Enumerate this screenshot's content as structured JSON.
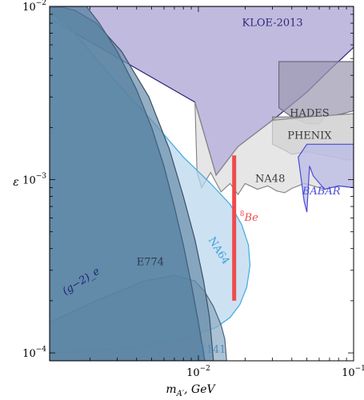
{
  "chart_data": {
    "type": "area",
    "title": "",
    "xlabel": "m_{A'}, GeV",
    "ylabel": "ε",
    "xscale": "log",
    "yscale": "log",
    "xlim": [
      0.0011,
      0.1
    ],
    "ylim": [
      9e-05,
      0.01
    ],
    "x_ticks": [
      {
        "value": 0.01,
        "base": "10",
        "exp": "−2"
      },
      {
        "value": 0.1,
        "base": "10",
        "exp": "−1"
      }
    ],
    "y_ticks": [
      {
        "value": 0.0001,
        "base": "10",
        "exp": "−4"
      },
      {
        "value": 0.001,
        "base": "10",
        "exp": "−3"
      },
      {
        "value": 0.01,
        "base": "10",
        "exp": "−2"
      }
    ],
    "regions": [
      {
        "name": "KLOE-2013",
        "fill": "#a99fd2",
        "stroke": "#2c2a78",
        "label_pos": [
          0.03,
          0.0077
        ],
        "label_color": "#2c2a78",
        "points": [
          [
            0.0011,
            0.01
          ],
          [
            0.0011,
            0.0085
          ],
          [
            0.0095,
            0.0028
          ],
          [
            0.013,
            0.00106
          ],
          [
            0.018,
            0.00155
          ],
          [
            0.03,
            0.0022
          ],
          [
            0.05,
            0.0032
          ],
          [
            0.07,
            0.0043
          ],
          [
            0.1,
            0.0058
          ],
          [
            0.1,
            0.01
          ]
        ]
      },
      {
        "name": "HADES",
        "fill": "#9c98b0",
        "stroke": "#6e6b80",
        "label_pos": [
          0.052,
          0.00232
        ],
        "label_color": "#3a3a3a",
        "points": [
          [
            0.033,
            0.0048
          ],
          [
            0.033,
            0.0026
          ],
          [
            0.04,
            0.0023
          ],
          [
            0.05,
            0.0021
          ],
          [
            0.06,
            0.0021
          ],
          [
            0.065,
            0.0023
          ],
          [
            0.085,
            0.0024
          ],
          [
            0.1,
            0.0025
          ],
          [
            0.1,
            0.0048
          ]
        ]
      },
      {
        "name": "PHENIX",
        "fill": "#b3b3b8",
        "stroke": "#777777",
        "label_pos": [
          0.052,
          0.00172
        ],
        "label_color": "#3a3a3a",
        "points": [
          [
            0.03,
            0.0023
          ],
          [
            0.03,
            0.0016
          ],
          [
            0.035,
            0.0015
          ],
          [
            0.04,
            0.0014
          ],
          [
            0.05,
            0.00145
          ],
          [
            0.06,
            0.0014
          ],
          [
            0.075,
            0.00135
          ],
          [
            0.09,
            0.0013
          ],
          [
            0.1,
            0.0013
          ],
          [
            0.1,
            0.0024
          ],
          [
            0.05,
            0.0023
          ]
        ]
      },
      {
        "name": "NA48",
        "fill": "#dcdcdc",
        "stroke": "#888888",
        "label_pos": [
          0.029,
          0.00097
        ],
        "label_color": "#3a3a3a",
        "points": [
          [
            0.0095,
            0.0028
          ],
          [
            0.0098,
            0.0011
          ],
          [
            0.0105,
            0.0009
          ],
          [
            0.012,
            0.0011
          ],
          [
            0.014,
            0.00085
          ],
          [
            0.016,
            0.00095
          ],
          [
            0.018,
            0.00082
          ],
          [
            0.02,
            0.00095
          ],
          [
            0.024,
            0.00088
          ],
          [
            0.028,
            0.00092
          ],
          [
            0.032,
            0.00086
          ],
          [
            0.036,
            0.00084
          ],
          [
            0.04,
            0.00089
          ],
          [
            0.048,
            0.00095
          ],
          [
            0.055,
            0.00092
          ],
          [
            0.065,
            0.00088
          ],
          [
            0.08,
            0.00092
          ],
          [
            0.1,
            0.0009
          ],
          [
            0.1,
            0.0024
          ],
          [
            0.05,
            0.0023
          ],
          [
            0.03,
            0.0022
          ],
          [
            0.018,
            0.00155
          ],
          [
            0.013,
            0.00106
          ]
        ]
      },
      {
        "name": "BABAR",
        "fill": "#b8b8e6",
        "stroke": "#4a4ad8",
        "label_pos": [
          0.062,
          0.00082
        ],
        "label_color": "#4a4ad8",
        "points": [
          [
            0.044,
            0.00135
          ],
          [
            0.048,
            0.00075
          ],
          [
            0.05,
            0.00065
          ],
          [
            0.052,
            0.0012
          ],
          [
            0.055,
            0.00105
          ],
          [
            0.065,
            0.00088
          ],
          [
            0.08,
            0.00092
          ],
          [
            0.1,
            0.0009
          ],
          [
            0.1,
            0.0016
          ],
          [
            0.05,
            0.0016
          ]
        ]
      },
      {
        "name": "NA64",
        "fill": "#b9d7ee",
        "stroke": "#41a9df",
        "label_pos": [
          0.013,
          0.00038
        ],
        "label_color": "#3e9fd6",
        "points": [
          [
            0.0011,
            0.0094
          ],
          [
            0.0015,
            0.0075
          ],
          [
            0.002,
            0.0055
          ],
          [
            0.003,
            0.0036
          ],
          [
            0.005,
            0.0022
          ],
          [
            0.008,
            0.00135
          ],
          [
            0.012,
            0.00095
          ],
          [
            0.016,
            0.00072
          ],
          [
            0.019,
            0.00055
          ],
          [
            0.021,
            0.00042
          ],
          [
            0.0215,
            0.00032
          ],
          [
            0.0205,
            0.00024
          ],
          [
            0.0185,
            0.00019
          ],
          [
            0.016,
            0.00016
          ],
          [
            0.013,
            0.00014
          ],
          [
            0.008,
            0.00012
          ],
          [
            0.004,
            0.000108
          ],
          [
            0.002,
            0.000102
          ],
          [
            0.0011,
            0.0001
          ]
        ]
      },
      {
        "name": "E141",
        "fill": "#8aaac4",
        "stroke": "#52607c",
        "label_pos": [
          0.0123,
          0.0001
        ],
        "label_color": "#4f8fbf",
        "points": [
          [
            0.0011,
            0.00015
          ],
          [
            0.0022,
            0.0002
          ],
          [
            0.0045,
            0.00026
          ],
          [
            0.007,
            0.00028
          ],
          [
            0.0095,
            0.00026
          ],
          [
            0.011,
            0.000225
          ],
          [
            0.0125,
            0.000185
          ],
          [
            0.014,
            0.000145
          ],
          [
            0.0148,
            0.00012
          ],
          [
            0.0152,
            9e-05
          ],
          [
            0.0011,
            9e-05
          ]
        ]
      },
      {
        "name": "E774",
        "fill": "#6b8fac",
        "stroke": "#3a4e66",
        "label_pos": [
          0.0049,
          0.00032
        ],
        "label_color": "#2c3a4e",
        "points": [
          [
            0.0011,
            0.0098
          ],
          [
            0.0013,
            0.0099
          ],
          [
            0.0016,
            0.0095
          ],
          [
            0.0022,
            0.008
          ],
          [
            0.0032,
            0.0055
          ],
          [
            0.0048,
            0.003
          ],
          [
            0.0065,
            0.0015
          ],
          [
            0.008,
            0.0008
          ],
          [
            0.0095,
            0.00045
          ],
          [
            0.0108,
            0.00026
          ],
          [
            0.0118,
            0.00016
          ],
          [
            0.0125,
            9e-05
          ],
          [
            0.0011,
            9e-05
          ]
        ]
      },
      {
        "name": "(g−2)_e",
        "fill": "#55809f",
        "stroke": "#3e5e7c",
        "label_pos": [
          0.0018,
          0.00025
        ],
        "label_color": "#1d1f7a",
        "points": [
          [
            0.0011,
            0.01
          ],
          [
            0.0019,
            0.01
          ],
          [
            0.0023,
            0.008
          ],
          [
            0.003,
            0.0055
          ],
          [
            0.004,
            0.0033
          ],
          [
            0.005,
            0.002
          ],
          [
            0.006,
            0.0012
          ],
          [
            0.007,
            0.0007
          ],
          [
            0.008,
            0.00042
          ],
          [
            0.009,
            0.00025
          ],
          [
            0.01,
            0.00015
          ],
          [
            0.011,
            9e-05
          ],
          [
            0.0011,
            9e-05
          ]
        ]
      }
    ],
    "signal": {
      "name": "8Be",
      "label": "Be",
      "superscript": "8",
      "x": 0.017,
      "y_range": [
        0.0002,
        0.00138
      ],
      "color": "#ef4a4a",
      "label_pos": [
        0.0185,
        0.00058
      ]
    }
  }
}
